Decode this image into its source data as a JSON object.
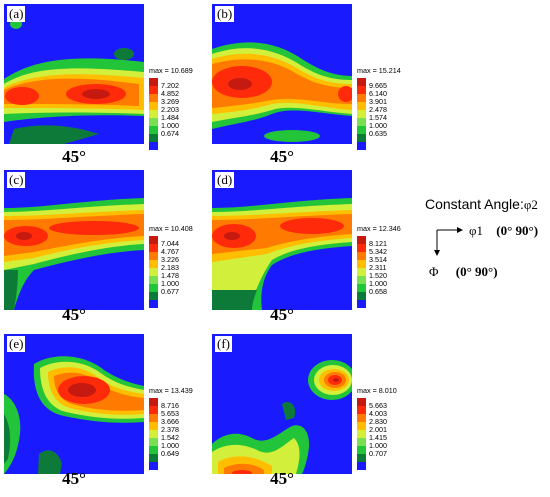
{
  "colors": {
    "levels": [
      "#1a1aff",
      "#0e7a3a",
      "#22c43a",
      "#78e050",
      "#d2ef3c",
      "#ffbe00",
      "#ff7a00",
      "#ff2a0a",
      "#c61a10"
    ],
    "background": "#1a1aff"
  },
  "panels": [
    {
      "label": "(a)",
      "angle": "45°",
      "max_text": "max = 10.689",
      "levels": [
        "7.202",
        "4.852",
        "3.269",
        "2.203",
        "1.484",
        "1.000",
        "0.674"
      ]
    },
    {
      "label": "(b)",
      "angle": "45°",
      "max_text": "max = 15.214",
      "levels": [
        "9.665",
        "6.140",
        "3.901",
        "2.478",
        "1.574",
        "1.000",
        "0.635"
      ]
    },
    {
      "label": "(c)",
      "angle": "45°",
      "max_text": "max = 10.408",
      "levels": [
        "7.044",
        "4.767",
        "3.226",
        "2.183",
        "1.478",
        "1.000",
        "0.677"
      ]
    },
    {
      "label": "(d)",
      "angle": "45°",
      "max_text": "max = 12.346",
      "levels": [
        "8.121",
        "5.342",
        "3.514",
        "2.311",
        "1.520",
        "1.000",
        "0.658"
      ]
    },
    {
      "label": "(e)",
      "angle": "45°",
      "max_text": "max = 13.439",
      "levels": [
        "8.716",
        "5.653",
        "3.666",
        "2.378",
        "1.542",
        "1.000",
        "0.649"
      ]
    },
    {
      "label": "(f)",
      "angle": "45°",
      "max_text": "max = 8.010",
      "levels": [
        "5.663",
        "4.003",
        "2.830",
        "2.001",
        "1.415",
        "1.000",
        "0.707"
      ]
    }
  ],
  "info": {
    "title": "Constant Angle:",
    "title_symbol": "φ2",
    "x_axis_symbol": "φ1",
    "x_axis_range": "(0° 90°)",
    "y_axis_symbol": "Φ",
    "y_axis_range": "(0° 90°)"
  }
}
